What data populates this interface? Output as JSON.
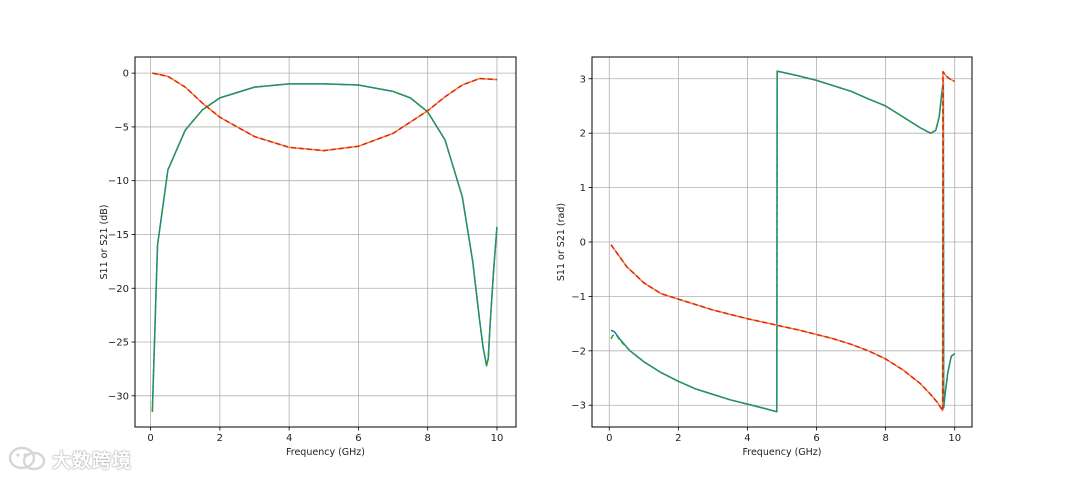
{
  "watermark": {
    "text": "大数跨境",
    "icon": "wechat-logo-icon"
  },
  "colors": {
    "blue": "#1f77b4",
    "orange": "#ff7f0e",
    "green": "#2ca02c",
    "red": "#d62728",
    "grid": "#b0b0b0"
  },
  "chart_data": [
    {
      "type": "line",
      "title": "",
      "xlabel": "Frequency (GHz)",
      "ylabel": "S11 or S21 (dB)",
      "xlim": [
        -0.45,
        10.55
      ],
      "ylim": [
        -32.9,
        1.5
      ],
      "xticks": [
        0,
        2,
        4,
        6,
        8,
        10
      ],
      "yticks": [
        0,
        -5,
        -10,
        -15,
        -20,
        -25,
        -30
      ],
      "grid": true,
      "legend": "none",
      "series": [
        {
          "color": "#1f77b4",
          "dash": "solid",
          "x": [
            0.05,
            0.2,
            0.5,
            1,
            1.5,
            2,
            3,
            4,
            5,
            6,
            7,
            7.5,
            8,
            8.5,
            9,
            9.3,
            9.5,
            9.6,
            9.7,
            9.75,
            9.8,
            9.9,
            10
          ],
          "y": [
            -31.5,
            -16,
            -9,
            -5.3,
            -3.4,
            -2.3,
            -1.3,
            -1.0,
            -1.0,
            -1.1,
            -1.7,
            -2.3,
            -3.6,
            -6.2,
            -11.5,
            -17.5,
            -23,
            -25.5,
            -27.2,
            -26.5,
            -23.5,
            -18.5,
            -14.3
          ]
        },
        {
          "color": "#2ca02c",
          "dash": "dashed",
          "x": [
            0.05,
            0.2,
            0.5,
            1,
            1.5,
            2,
            3,
            4,
            5,
            6,
            7,
            7.5,
            8,
            8.5,
            9,
            9.3,
            9.5,
            9.6,
            9.7,
            9.75,
            9.8,
            9.9,
            10
          ],
          "y": [
            -31.5,
            -16,
            -9,
            -5.3,
            -3.4,
            -2.3,
            -1.3,
            -1.0,
            -1.0,
            -1.1,
            -1.7,
            -2.3,
            -3.6,
            -6.2,
            -11.5,
            -17.5,
            -23,
            -25.5,
            -27.2,
            -26.5,
            -23.5,
            -18.5,
            -14.3
          ]
        },
        {
          "color": "#ff7f0e",
          "dash": "solid",
          "x": [
            0.05,
            0.5,
            1,
            1.5,
            2,
            3,
            4,
            5,
            6,
            7,
            8,
            8.5,
            9,
            9.5,
            10
          ],
          "y": [
            0,
            -0.3,
            -1.3,
            -2.8,
            -4.1,
            -5.9,
            -6.9,
            -7.2,
            -6.8,
            -5.6,
            -3.5,
            -2.2,
            -1.1,
            -0.5,
            -0.6
          ]
        },
        {
          "color": "#d62728",
          "dash": "dashed",
          "x": [
            0.05,
            0.5,
            1,
            1.5,
            2,
            3,
            4,
            5,
            6,
            7,
            8,
            8.5,
            9,
            9.5,
            10
          ],
          "y": [
            0,
            -0.3,
            -1.3,
            -2.8,
            -4.1,
            -5.9,
            -6.9,
            -7.2,
            -6.8,
            -5.6,
            -3.5,
            -2.2,
            -1.1,
            -0.5,
            -0.6
          ]
        }
      ]
    },
    {
      "type": "line",
      "title": "",
      "xlabel": "Frequency (GHz)",
      "ylabel": "S11 or S21 (rad)",
      "xlim": [
        -0.5,
        10.5
      ],
      "ylim": [
        -3.4,
        3.4
      ],
      "xticks": [
        0,
        2,
        4,
        6,
        8,
        10
      ],
      "yticks": [
        3,
        2,
        1,
        0,
        -1,
        -2,
        -3
      ],
      "grid": true,
      "legend": "none",
      "series": [
        {
          "color": "#1f77b4",
          "dash": "solid",
          "x": [
            0.05,
            0.15,
            0.3,
            0.6,
            1,
            1.5,
            2,
            2.5,
            3,
            3.5,
            4,
            4.5,
            4.85,
            4.86,
            5.5,
            6,
            7,
            7.5,
            8,
            8.5,
            9,
            9.3,
            9.45,
            9.55,
            9.62,
            9.67,
            9.68,
            9.72,
            9.8,
            9.9,
            10
          ],
          "y": [
            -1.62,
            -1.65,
            -1.78,
            -2.0,
            -2.2,
            -2.4,
            -2.56,
            -2.7,
            -2.8,
            -2.9,
            -2.98,
            -3.06,
            -3.12,
            3.14,
            3.05,
            2.97,
            2.77,
            2.63,
            2.5,
            2.3,
            2.1,
            2.0,
            2.05,
            2.3,
            2.7,
            2.95,
            -3.05,
            -2.8,
            -2.4,
            -2.1,
            -2.05
          ]
        },
        {
          "color": "#2ca02c",
          "dash": "dashed",
          "x": [
            0.05,
            0.1,
            0.2,
            0.3,
            0.6,
            1,
            1.5,
            2,
            2.5,
            3,
            3.5,
            4,
            4.5,
            4.85,
            4.86,
            5.5,
            6,
            7,
            7.5,
            8,
            8.5,
            9,
            9.3,
            9.45,
            9.55,
            9.62,
            9.67,
            9.68,
            9.72,
            9.8,
            9.9,
            10
          ],
          "y": [
            -1.78,
            -1.72,
            -1.7,
            -1.8,
            -2.0,
            -2.2,
            -2.4,
            -2.56,
            -2.7,
            -2.8,
            -2.9,
            -2.98,
            -3.06,
            -3.12,
            3.14,
            3.05,
            2.97,
            2.77,
            2.63,
            2.5,
            2.3,
            2.1,
            2.0,
            2.05,
            2.3,
            2.7,
            2.95,
            -3.05,
            -2.8,
            -2.4,
            -2.1,
            -2.05
          ]
        },
        {
          "color": "#ff7f0e",
          "dash": "solid",
          "x": [
            0.05,
            0.5,
            1,
            1.5,
            2,
            2.5,
            3,
            3.5,
            4,
            4.5,
            5,
            5.5,
            6,
            6.5,
            7,
            7.5,
            8,
            8.5,
            9,
            9.3,
            9.5,
            9.65,
            9.66,
            9.75,
            9.85,
            10
          ],
          "y": [
            -0.05,
            -0.45,
            -0.75,
            -0.95,
            -1.05,
            -1.15,
            -1.25,
            -1.33,
            -1.41,
            -1.48,
            -1.55,
            -1.62,
            -1.7,
            -1.78,
            -1.88,
            -2.0,
            -2.15,
            -2.35,
            -2.6,
            -2.8,
            -2.95,
            -3.1,
            3.13,
            3.05,
            3.0,
            2.95
          ]
        },
        {
          "color": "#d62728",
          "dash": "dashed",
          "x": [
            0.05,
            0.5,
            1,
            1.5,
            2,
            2.5,
            3,
            3.5,
            4,
            4.5,
            5,
            5.5,
            6,
            6.5,
            7,
            7.5,
            8,
            8.5,
            9,
            9.3,
            9.5,
            9.65,
            9.66,
            9.75,
            9.85,
            10
          ],
          "y": [
            -0.05,
            -0.45,
            -0.75,
            -0.95,
            -1.05,
            -1.15,
            -1.25,
            -1.33,
            -1.41,
            -1.48,
            -1.55,
            -1.62,
            -1.7,
            -1.78,
            -1.88,
            -2.0,
            -2.15,
            -2.35,
            -2.6,
            -2.8,
            -2.95,
            -3.1,
            3.13,
            3.05,
            3.0,
            2.95
          ]
        }
      ]
    }
  ]
}
